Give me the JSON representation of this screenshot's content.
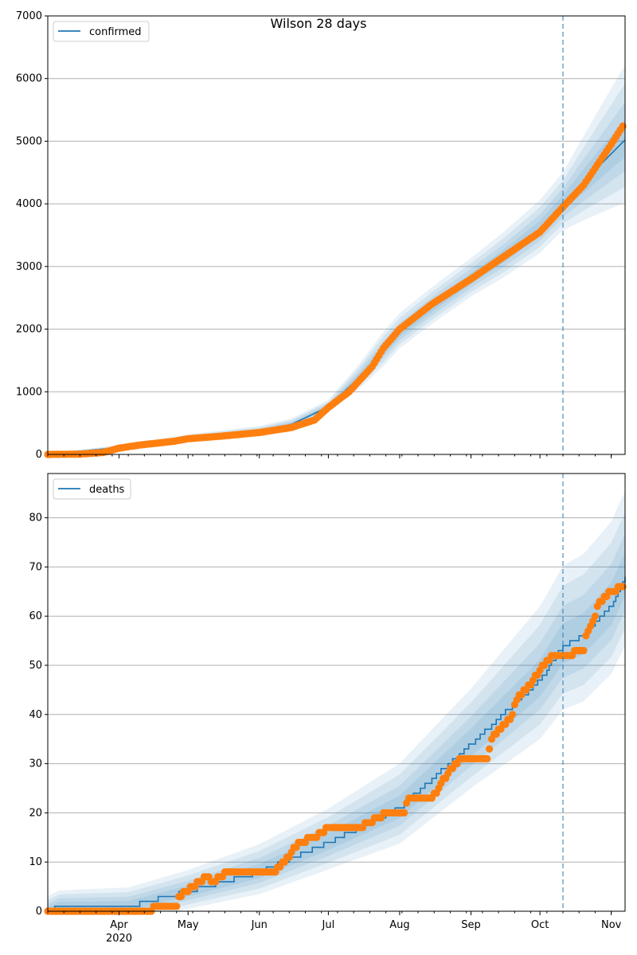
{
  "title": "Wilson 28 days",
  "colors": {
    "line": "#1f77b4",
    "band": "#1f77b4",
    "points": "#ff7f0e",
    "vline": "#1f77b4",
    "grid": "#b0b0b0"
  },
  "x_axis": {
    "start": "2020-03-01",
    "end": "2020-11-07",
    "month_ticks": [
      {
        "date": "2020-04-01",
        "label": "Apr"
      },
      {
        "date": "2020-05-01",
        "label": "May"
      },
      {
        "date": "2020-06-01",
        "label": "Jun"
      },
      {
        "date": "2020-07-01",
        "label": "Jul"
      },
      {
        "date": "2020-08-01",
        "label": "Aug"
      },
      {
        "date": "2020-09-01",
        "label": "Sep"
      },
      {
        "date": "2020-10-01",
        "label": "Oct"
      },
      {
        "date": "2020-11-01",
        "label": "Nov"
      }
    ],
    "year_label": "2020",
    "forecast_start": "2020-10-11"
  },
  "chart_data": [
    {
      "type": "line",
      "legend": "confirmed",
      "legend_position": "upper-left",
      "grid": "y",
      "ylim": [
        0,
        7000
      ],
      "yticks": [
        0,
        1000,
        2000,
        3000,
        4000,
        5000,
        6000,
        7000
      ],
      "observed": [
        [
          "2020-03-01",
          0
        ],
        [
          "2020-03-15",
          5
        ],
        [
          "2020-03-25",
          30
        ],
        [
          "2020-04-01",
          100
        ],
        [
          "2020-04-10",
          150
        ],
        [
          "2020-04-25",
          210
        ],
        [
          "2020-05-01",
          250
        ],
        [
          "2020-05-15",
          290
        ],
        [
          "2020-06-01",
          350
        ],
        [
          "2020-06-15",
          430
        ],
        [
          "2020-06-25",
          550
        ],
        [
          "2020-07-01",
          750
        ],
        [
          "2020-07-10",
          1000
        ],
        [
          "2020-07-20",
          1400
        ],
        [
          "2020-07-25",
          1700
        ],
        [
          "2020-08-01",
          2000
        ],
        [
          "2020-08-15",
          2400
        ],
        [
          "2020-09-01",
          2800
        ],
        [
          "2020-09-15",
          3150
        ],
        [
          "2020-10-01",
          3550
        ],
        [
          "2020-10-11",
          3950
        ],
        [
          "2020-10-20",
          4300
        ],
        [
          "2020-11-01",
          4950
        ],
        [
          "2020-11-06",
          5240
        ]
      ],
      "model": [
        [
          "2020-03-01",
          0
        ],
        [
          "2020-04-01",
          110
        ],
        [
          "2020-05-01",
          260
        ],
        [
          "2020-06-01",
          370
        ],
        [
          "2020-06-15",
          480
        ],
        [
          "2020-07-01",
          760
        ],
        [
          "2020-07-15",
          1250
        ],
        [
          "2020-08-01",
          1950
        ],
        [
          "2020-08-15",
          2350
        ],
        [
          "2020-09-01",
          2800
        ],
        [
          "2020-09-15",
          3150
        ],
        [
          "2020-10-01",
          3600
        ],
        [
          "2020-10-11",
          4000
        ],
        [
          "2020-10-20",
          4350
        ],
        [
          "2020-11-01",
          4800
        ],
        [
          "2020-11-07",
          5020
        ]
      ],
      "band_widths": [
        [
          "2020-03-01",
          15
        ],
        [
          "2020-05-01",
          50
        ],
        [
          "2020-07-01",
          90
        ],
        [
          "2020-07-25",
          250
        ],
        [
          "2020-09-01",
          280
        ],
        [
          "2020-10-11",
          420
        ],
        [
          "2020-11-07",
          1000
        ]
      ]
    },
    {
      "type": "line",
      "legend": "deaths",
      "legend_position": "upper-left",
      "grid": "y",
      "ylim": [
        0,
        89
      ],
      "yticks": [
        0,
        10,
        20,
        30,
        40,
        50,
        60,
        70,
        80
      ],
      "observed": [
        [
          "2020-03-01",
          0
        ],
        [
          "2020-04-15",
          0
        ],
        [
          "2020-04-16",
          1
        ],
        [
          "2020-04-26",
          1
        ],
        [
          "2020-04-27",
          3
        ],
        [
          "2020-05-03",
          5
        ],
        [
          "2020-05-09",
          7
        ],
        [
          "2020-05-12",
          6
        ],
        [
          "2020-05-18",
          8
        ],
        [
          "2020-06-07",
          8
        ],
        [
          "2020-06-12",
          10
        ],
        [
          "2020-06-18",
          14
        ],
        [
          "2020-06-25",
          15
        ],
        [
          "2020-07-01",
          17
        ],
        [
          "2020-07-15",
          17
        ],
        [
          "2020-07-22",
          19
        ],
        [
          "2020-07-28",
          20
        ],
        [
          "2020-08-03",
          20
        ],
        [
          "2020-08-05",
          23
        ],
        [
          "2020-08-15",
          23
        ],
        [
          "2020-08-22",
          28
        ],
        [
          "2020-08-27",
          31
        ],
        [
          "2020-09-08",
          31
        ],
        [
          "2020-09-10",
          35
        ],
        [
          "2020-09-18",
          39
        ],
        [
          "2020-09-21",
          43
        ],
        [
          "2020-09-28",
          47
        ],
        [
          "2020-10-06",
          52
        ],
        [
          "2020-10-15",
          52
        ],
        [
          "2020-10-16",
          53
        ],
        [
          "2020-10-20",
          53
        ],
        [
          "2020-10-21",
          56
        ],
        [
          "2020-10-25",
          60
        ],
        [
          "2020-10-27",
          63
        ],
        [
          "2020-11-01",
          65
        ],
        [
          "2020-11-06",
          66
        ]
      ],
      "model": [
        [
          "2020-03-01",
          0
        ],
        [
          "2020-03-06",
          1
        ],
        [
          "2020-04-05",
          1
        ],
        [
          "2020-05-01",
          4
        ],
        [
          "2020-06-01",
          8
        ],
        [
          "2020-07-01",
          14
        ],
        [
          "2020-08-01",
          21
        ],
        [
          "2020-09-01",
          34
        ],
        [
          "2020-10-01",
          47
        ],
        [
          "2020-10-11",
          54
        ],
        [
          "2020-10-20",
          56
        ],
        [
          "2020-11-01",
          62
        ],
        [
          "2020-11-07",
          68
        ]
      ],
      "band_widths": [
        [
          "2020-03-01",
          2.5
        ],
        [
          "2020-05-01",
          3.5
        ],
        [
          "2020-07-01",
          5.5
        ],
        [
          "2020-09-01",
          9
        ],
        [
          "2020-10-11",
          13
        ],
        [
          "2020-11-07",
          14
        ]
      ]
    }
  ]
}
